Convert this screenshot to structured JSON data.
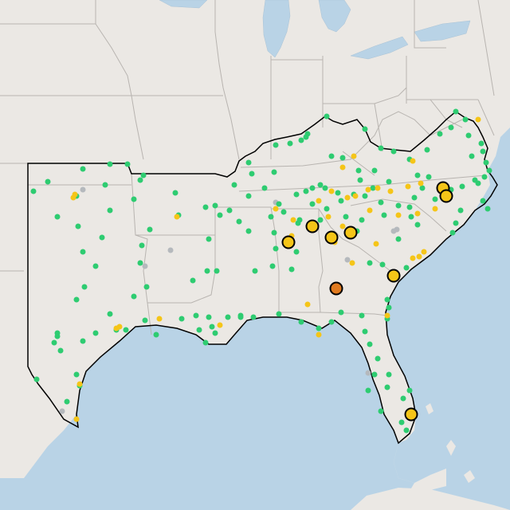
{
  "map": {
    "colors": {
      "land": "#ebe8e4",
      "water": "#b9d3e6",
      "lake": "#b9d3e6",
      "state_border": "#b8b4b0",
      "region_outline": "#000000",
      "green": "#2ecc71",
      "yellow": "#f5c518",
      "orange": "#e07a1f",
      "gray": "#b5b9bd",
      "marker_outline": "#000000"
    },
    "markers": {
      "small_green_count": 180,
      "small_yellow_count": 40,
      "small_gray_count": 7,
      "large_yellow_count": 9,
      "large_orange_count": 1
    }
  }
}
